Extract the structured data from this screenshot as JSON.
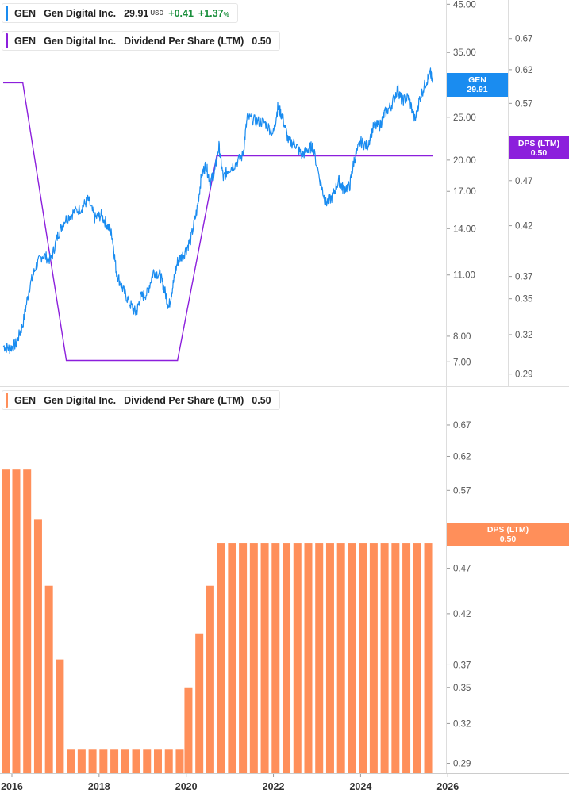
{
  "colors": {
    "price": "#1a8cf0",
    "dps_line": "#8c1fdc",
    "dps_bar": "#ff8f5a",
    "gain": "#1a8f3c"
  },
  "legend_top": {
    "symbol": "GEN",
    "company": "Gen Digital Inc.",
    "price": "29.91",
    "currency": "USD",
    "change": "+0.41",
    "change_pct": "+1.37",
    "pct_sign": "%"
  },
  "legend_dps": {
    "symbol": "GEN",
    "company": "Gen Digital Inc.",
    "metric": "Dividend Per Share (LTM)",
    "value": "0.50"
  },
  "legend_bottom": {
    "symbol": "GEN",
    "company": "Gen Digital Inc.",
    "metric": "Dividend Per Share (LTM)",
    "value": "0.50"
  },
  "flags": {
    "price_symbol": "GEN",
    "price_value": "29.91",
    "dps_top_label": "DPS (LTM)",
    "dps_top_value": "0.50",
    "dps_bottom_label": "DPS (LTM)",
    "dps_bottom_value": "0.50"
  },
  "chart_data": [
    {
      "type": "line",
      "series": [
        {
          "name": "GEN",
          "scale": "log",
          "axis": "left-of-right-pair",
          "ylim": [
            6.4,
            46
          ],
          "ticks": [
            "45.00",
            "35.00",
            "25.00",
            "20.00",
            "17.00",
            "14.00",
            "11.00",
            "8.00",
            "7.00"
          ],
          "points": [
            [
              2015.8,
              7.6
            ],
            [
              2015.95,
              7.5
            ],
            [
              2016.1,
              7.7
            ],
            [
              2016.25,
              8.5
            ],
            [
              2016.4,
              10.3
            ],
            [
              2016.55,
              11.5
            ],
            [
              2016.7,
              12.2
            ],
            [
              2016.9,
              11.9
            ],
            [
              2017.05,
              13.5
            ],
            [
              2017.2,
              14.6
            ],
            [
              2017.4,
              15.2
            ],
            [
              2017.6,
              15.6
            ],
            [
              2017.75,
              16.3
            ],
            [
              2017.9,
              14.8
            ],
            [
              2018.05,
              15.0
            ],
            [
              2018.2,
              14.2
            ],
            [
              2018.3,
              13.5
            ],
            [
              2018.4,
              11.1
            ],
            [
              2018.55,
              10.2
            ],
            [
              2018.7,
              9.5
            ],
            [
              2018.85,
              9.0
            ],
            [
              2018.95,
              9.8
            ],
            [
              2019.1,
              10.0
            ],
            [
              2019.25,
              11.2
            ],
            [
              2019.4,
              11.0
            ],
            [
              2019.5,
              10.2
            ],
            [
              2019.6,
              9.3
            ],
            [
              2019.7,
              10.5
            ],
            [
              2019.8,
              11.8
            ],
            [
              2019.95,
              12.3
            ],
            [
              2020.1,
              13.2
            ],
            [
              2020.25,
              15.5
            ],
            [
              2020.35,
              18.5
            ],
            [
              2020.45,
              19.5
            ],
            [
              2020.55,
              17.8
            ],
            [
              2020.65,
              18.8
            ],
            [
              2020.75,
              21.5
            ],
            [
              2020.85,
              18.2
            ],
            [
              2020.95,
              19.0
            ],
            [
              2021.1,
              19.5
            ],
            [
              2021.3,
              20.5
            ],
            [
              2021.4,
              25.0
            ],
            [
              2021.6,
              24.5
            ],
            [
              2021.8,
              24.3
            ],
            [
              2022.0,
              23.0
            ],
            [
              2022.1,
              26.3
            ],
            [
              2022.2,
              25.2
            ],
            [
              2022.35,
              22.0
            ],
            [
              2022.5,
              21.8
            ],
            [
              2022.65,
              20.5
            ],
            [
              2022.8,
              21.2
            ],
            [
              2022.9,
              21.5
            ],
            [
              2023.1,
              17.5
            ],
            [
              2023.2,
              16.0
            ],
            [
              2023.35,
              16.5
            ],
            [
              2023.5,
              18.0
            ],
            [
              2023.6,
              17.2
            ],
            [
              2023.75,
              17.5
            ],
            [
              2023.85,
              20.0
            ],
            [
              2024.0,
              22.0
            ],
            [
              2024.15,
              21.5
            ],
            [
              2024.3,
              23.8
            ],
            [
              2024.45,
              24.0
            ],
            [
              2024.55,
              25.5
            ],
            [
              2024.7,
              26.5
            ],
            [
              2024.85,
              29.0
            ],
            [
              2024.95,
              27.2
            ],
            [
              2025.1,
              27.8
            ],
            [
              2025.25,
              24.5
            ],
            [
              2025.35,
              27.5
            ],
            [
              2025.5,
              30.0
            ],
            [
              2025.6,
              31.5
            ],
            [
              2025.65,
              29.91
            ]
          ]
        },
        {
          "name": "DPS (LTM)",
          "scale": "log",
          "axis": "right",
          "ylim": [
            0.283,
            0.712
          ],
          "ticks": [
            "0.67",
            "0.62",
            "0.57",
            "0.52",
            "0.47",
            "0.42",
            "0.37",
            "0.35",
            "0.32",
            "0.29"
          ],
          "points": [
            [
              2015.8,
              0.6
            ],
            [
              2016.25,
              0.6
            ],
            [
              2017.25,
              0.3
            ],
            [
              2019.8,
              0.3
            ],
            [
              2020.7,
              0.5
            ],
            [
              2025.65,
              0.5
            ]
          ]
        }
      ]
    },
    {
      "type": "bar",
      "name": "Dividend Per Share (LTM)",
      "scale": "log",
      "ylim": [
        0.283,
        0.712
      ],
      "ticks": [
        "0.67",
        "0.62",
        "0.57",
        "0.52",
        "0.47",
        "0.42",
        "0.37",
        "0.35",
        "0.32",
        "0.29"
      ],
      "xticks": [
        "2016",
        "2018",
        "2020",
        "2022",
        "2024",
        "2026"
      ],
      "xlim": [
        2015.8,
        2026.05
      ],
      "bars": [
        [
          2015.86,
          0.6
        ],
        [
          2016.1,
          0.6
        ],
        [
          2016.35,
          0.6
        ],
        [
          2016.6,
          0.53
        ],
        [
          2016.85,
          0.45
        ],
        [
          2017.1,
          0.375
        ],
        [
          2017.35,
          0.3
        ],
        [
          2017.6,
          0.3
        ],
        [
          2017.85,
          0.3
        ],
        [
          2018.1,
          0.3
        ],
        [
          2018.35,
          0.3
        ],
        [
          2018.6,
          0.3
        ],
        [
          2018.85,
          0.3
        ],
        [
          2019.1,
          0.3
        ],
        [
          2019.35,
          0.3
        ],
        [
          2019.6,
          0.3
        ],
        [
          2019.85,
          0.3
        ],
        [
          2020.05,
          0.35
        ],
        [
          2020.3,
          0.4
        ],
        [
          2020.55,
          0.45
        ],
        [
          2020.8,
          0.5
        ],
        [
          2021.05,
          0.5
        ],
        [
          2021.3,
          0.5
        ],
        [
          2021.55,
          0.5
        ],
        [
          2021.8,
          0.5
        ],
        [
          2022.05,
          0.5
        ],
        [
          2022.3,
          0.5
        ],
        [
          2022.55,
          0.5
        ],
        [
          2022.8,
          0.5
        ],
        [
          2023.05,
          0.5
        ],
        [
          2023.3,
          0.5
        ],
        [
          2023.55,
          0.5
        ],
        [
          2023.8,
          0.5
        ],
        [
          2024.05,
          0.5
        ],
        [
          2024.3,
          0.5
        ],
        [
          2024.55,
          0.5
        ],
        [
          2024.8,
          0.5
        ],
        [
          2025.05,
          0.5
        ],
        [
          2025.3,
          0.5
        ],
        [
          2025.55,
          0.5
        ]
      ]
    }
  ]
}
